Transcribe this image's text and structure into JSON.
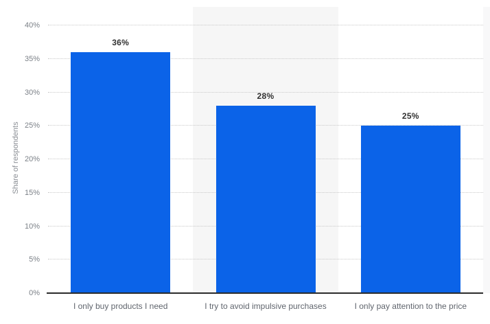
{
  "chart_data": {
    "type": "bar",
    "title": "",
    "categories": [
      "I only buy products I need",
      "I try to avoid impulsive purchases",
      "I only pay attention to the price"
    ],
    "values": [
      36,
      28,
      25
    ],
    "value_labels": [
      "36%",
      "28%",
      "25%"
    ],
    "xlabel": "",
    "ylabel": "Share of respondents",
    "ylim": [
      0,
      40
    ],
    "ytick_step": 5,
    "ytick_labels": [
      "0%",
      "5%",
      "10%",
      "15%",
      "20%",
      "25%",
      "30%",
      "35%",
      "40%"
    ],
    "grid": "horizontal-dotted",
    "legend": "none",
    "plot_bands_alternating": true
  },
  "colors": {
    "background": "#ffffff",
    "bar": "#0b63e8",
    "band": "#f6f6f6",
    "edge_band": "#f8f8f9",
    "gridline": "#c9c9c9",
    "baseline": "#2b2b2b",
    "tick_text": "#7b8087",
    "category_text": "#60656d",
    "value_text": "#303030",
    "axis_title_text": "#8a8e94"
  }
}
